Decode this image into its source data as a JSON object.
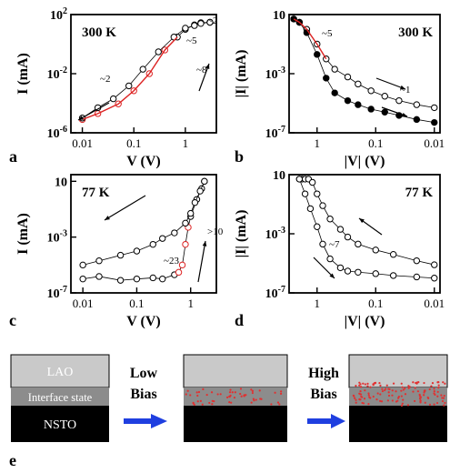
{
  "chart_data": [
    {
      "panel": "a",
      "type": "scatter",
      "temperature": "300 K",
      "xlabel": "V (V)",
      "ylabel": "I (mA)",
      "x_scale": "log",
      "y_scale": "log",
      "x_reversed": false,
      "xlim": [
        0.006,
        4
      ],
      "ylim": [
        1e-06,
        100
      ],
      "x_ticks": [
        "0.01",
        "0.1",
        "1"
      ],
      "y_ticks": [
        "10^-6",
        "10^-2",
        "10^2"
      ],
      "annotations": [
        "~2",
        "~5",
        "~8",
        "~2"
      ],
      "series": [
        {
          "values": [
            [
              0.01,
              8e-06
            ],
            [
              0.02,
              2e-05
            ],
            [
              0.05,
              9e-05
            ],
            [
              0.1,
              0.0007
            ],
            [
              0.2,
              0.01
            ],
            [
              0.4,
              0.4
            ],
            [
              0.7,
              3
            ],
            [
              1.0,
              10
            ],
            [
              1.5,
              20
            ],
            [
              2.0,
              28
            ],
            [
              3.0,
              30
            ]
          ]
        },
        {
          "values": [
            [
              3.0,
              30
            ],
            [
              2.0,
              25
            ],
            [
              1.5,
              18
            ],
            [
              1.0,
              12
            ],
            [
              0.6,
              3
            ],
            [
              0.3,
              0.3
            ],
            [
              0.15,
              0.02
            ],
            [
              0.08,
              0.0015
            ],
            [
              0.04,
              0.0002
            ],
            [
              0.02,
              5e-05
            ],
            [
              0.01,
              1e-05
            ]
          ]
        }
      ]
    },
    {
      "panel": "b",
      "type": "scatter",
      "temperature": "300 K",
      "xlabel": "|V| (V)",
      "ylabel": "|I| (mA)",
      "x_scale": "log",
      "y_scale": "log",
      "x_reversed": true,
      "xlim": [
        3,
        0.008
      ],
      "ylim": [
        1e-07,
        10
      ],
      "x_ticks": [
        "1",
        "0.1",
        "0.01"
      ],
      "y_ticks": [
        "10^-7",
        "10^-3",
        "10"
      ],
      "annotations": [
        "~5",
        "~1"
      ],
      "series": [
        {
          "values": [
            [
              2.5,
              5
            ],
            [
              2.0,
              3
            ],
            [
              1.5,
              1
            ],
            [
              1.0,
              0.1
            ],
            [
              0.7,
              0.01
            ],
            [
              0.5,
              0.002
            ],
            [
              0.3,
              0.0006
            ],
            [
              0.2,
              0.0002
            ],
            [
              0.12,
              7e-05
            ],
            [
              0.07,
              3e-05
            ],
            [
              0.04,
              1.5e-05
            ],
            [
              0.02,
              8e-06
            ],
            [
              0.01,
              5e-06
            ]
          ]
        },
        {
          "values": [
            [
              2.5,
              5
            ],
            [
              2.0,
              3
            ],
            [
              1.5,
              0.6
            ],
            [
              1.0,
              0.02
            ],
            [
              0.7,
              0.0005
            ],
            [
              0.5,
              5e-05
            ],
            [
              0.3,
              1.5e-05
            ],
            [
              0.2,
              8e-06
            ],
            [
              0.12,
              4e-06
            ],
            [
              0.07,
              2.5e-06
            ],
            [
              0.04,
              1.5e-06
            ],
            [
              0.02,
              8e-07
            ],
            [
              0.01,
              5e-07
            ]
          ]
        }
      ]
    },
    {
      "panel": "c",
      "type": "scatter",
      "temperature": "77 K",
      "xlabel": "V (V)",
      "ylabel": "I (mA)",
      "x_scale": "log",
      "y_scale": "log",
      "x_reversed": false,
      "xlim": [
        0.006,
        3
      ],
      "ylim": [
        1e-07,
        30
      ],
      "x_ticks": [
        "0.01",
        "0.1",
        "1"
      ],
      "y_ticks": [
        "10^-7",
        "10^-3",
        "10"
      ],
      "annotations": [
        "~23",
        ">10"
      ],
      "series": [
        {
          "values": [
            [
              0.01,
              1e-06
            ],
            [
              0.02,
              1.5e-06
            ],
            [
              0.05,
              8e-07
            ],
            [
              0.1,
              1e-06
            ],
            [
              0.2,
              1.2e-06
            ],
            [
              0.3,
              1e-06
            ],
            [
              0.5,
              2e-06
            ],
            [
              0.6,
              3e-06
            ],
            [
              0.7,
              1e-05
            ],
            [
              0.8,
              0.0003
            ],
            [
              0.9,
              0.005
            ],
            [
              1.0,
              0.03
            ],
            [
              1.3,
              0.5
            ],
            [
              1.6,
              3
            ],
            [
              1.8,
              10
            ]
          ]
        },
        {
          "values": [
            [
              1.8,
              10
            ],
            [
              1.5,
              2
            ],
            [
              1.2,
              0.3
            ],
            [
              1.0,
              0.05
            ],
            [
              0.8,
              0.01
            ],
            [
              0.5,
              0.002
            ],
            [
              0.3,
              0.0008
            ],
            [
              0.2,
              0.0003
            ],
            [
              0.1,
              0.0001
            ],
            [
              0.05,
              5e-05
            ],
            [
              0.02,
              2e-05
            ],
            [
              0.01,
              1e-05
            ]
          ]
        }
      ]
    },
    {
      "panel": "d",
      "type": "scatter",
      "temperature": "77 K",
      "xlabel": "|V| (V)",
      "ylabel": "|I| (mA)",
      "x_scale": "log",
      "y_scale": "log",
      "x_reversed": true,
      "xlim": [
        3,
        0.008
      ],
      "ylim": [
        1e-07,
        10
      ],
      "x_ticks": [
        "1",
        "0.1",
        "0.01"
      ],
      "y_ticks": [
        "10^-7",
        "10^-3",
        "10"
      ],
      "annotations": [
        "~7"
      ],
      "series": [
        {
          "values": [
            [
              2.0,
              5
            ],
            [
              1.8,
              5
            ],
            [
              1.6,
              5
            ],
            [
              1.4,
              5
            ],
            [
              1.2,
              3
            ],
            [
              1.0,
              0.5
            ],
            [
              0.8,
              0.08
            ],
            [
              0.6,
              0.01
            ],
            [
              0.4,
              0.002
            ],
            [
              0.3,
              0.0006
            ],
            [
              0.2,
              0.0002
            ],
            [
              0.1,
              8e-05
            ],
            [
              0.05,
              4e-05
            ],
            [
              0.02,
              1.5e-05
            ],
            [
              0.01,
              8e-06
            ]
          ]
        },
        {
          "values": [
            [
              2.0,
              5
            ],
            [
              1.6,
              0.5
            ],
            [
              1.3,
              0.05
            ],
            [
              1.0,
              0.003
            ],
            [
              0.8,
              0.0002
            ],
            [
              0.6,
              2e-05
            ],
            [
              0.4,
              5e-06
            ],
            [
              0.3,
              3e-06
            ],
            [
              0.2,
              2.5e-06
            ],
            [
              0.1,
              2e-06
            ],
            [
              0.05,
              1.5e-06
            ],
            [
              0.02,
              1.2e-06
            ],
            [
              0.01,
              1e-06
            ]
          ]
        }
      ]
    }
  ],
  "panel_labels": [
    "a",
    "b",
    "c",
    "d",
    "e"
  ],
  "schematic": {
    "layers": [
      "LAO",
      "Interface state",
      "NSTO"
    ],
    "arrow_labels": [
      {
        "line1": "Low",
        "line2": "Bias"
      },
      {
        "line1": "High",
        "line2": "Bias"
      }
    ],
    "colors": {
      "lao": "#c9c9c9",
      "interface": "#8c8c8c",
      "nsto": "#000000",
      "arrow": "#1f3fe0",
      "defect": "#e23030"
    }
  }
}
